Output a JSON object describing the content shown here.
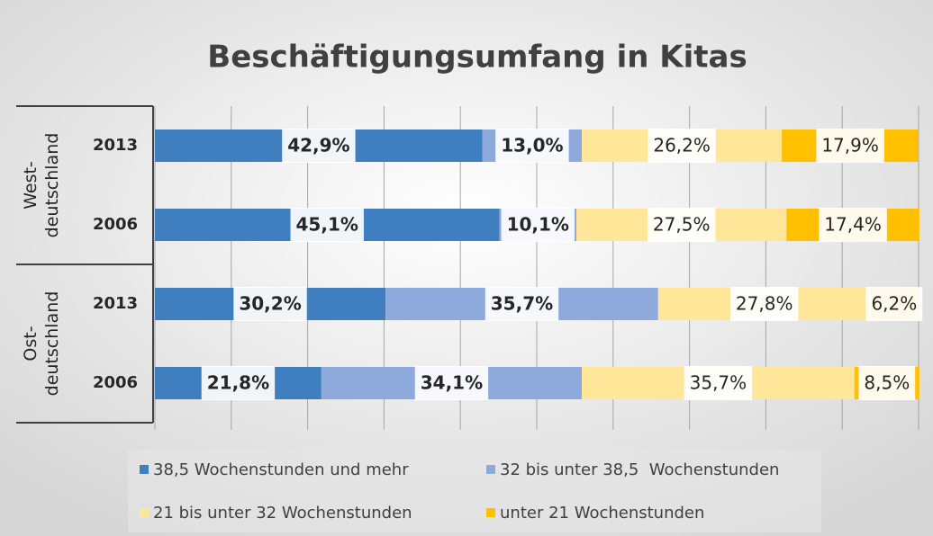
{
  "chart_data": {
    "type": "stacked_barh",
    "title": "Beschäftigungsumfang in Kitas",
    "groups": [
      {
        "label": [
          "West-",
          "deutschland"
        ],
        "categories": [
          "2013",
          "2006"
        ]
      },
      {
        "label": [
          "Ost-",
          "deutschland"
        ],
        "categories": [
          "2013",
          "2006"
        ]
      }
    ],
    "series": [
      {
        "name": "38,5 Wochenstunden und mehr",
        "color": "#3f7fc0",
        "values": [
          42.9,
          45.1,
          30.2,
          21.8
        ],
        "value_labels": [
          "42,9%",
          "45,1%",
          "30,2%",
          "21,8%"
        ]
      },
      {
        "name": "32 bis unter 38,5  Wochenstunden",
        "color": "#8eaadc",
        "values": [
          13.0,
          10.1,
          35.7,
          34.1
        ],
        "value_labels": [
          "13,0%",
          "10,1%",
          "35,7%",
          "34,1%"
        ]
      },
      {
        "name": "21 bis unter 32 Wochenstunden",
        "color": "#ffe699",
        "values": [
          26.2,
          27.5,
          27.8,
          35.7
        ],
        "value_labels": [
          "26,2%",
          "27,5%",
          "27,8%",
          "35,7%"
        ]
      },
      {
        "name": "unter 21 Wochenstunden",
        "color": "#ffc000",
        "values": [
          17.9,
          17.4,
          6.2,
          8.5
        ],
        "value_labels": [
          "17,9%",
          "17,4%",
          "6,2%",
          "8,5%"
        ]
      }
    ],
    "xlim": [
      0,
      100
    ],
    "xticks": [
      0,
      10,
      20,
      30,
      40,
      50,
      60,
      70,
      80,
      90,
      100
    ],
    "grid": true
  }
}
